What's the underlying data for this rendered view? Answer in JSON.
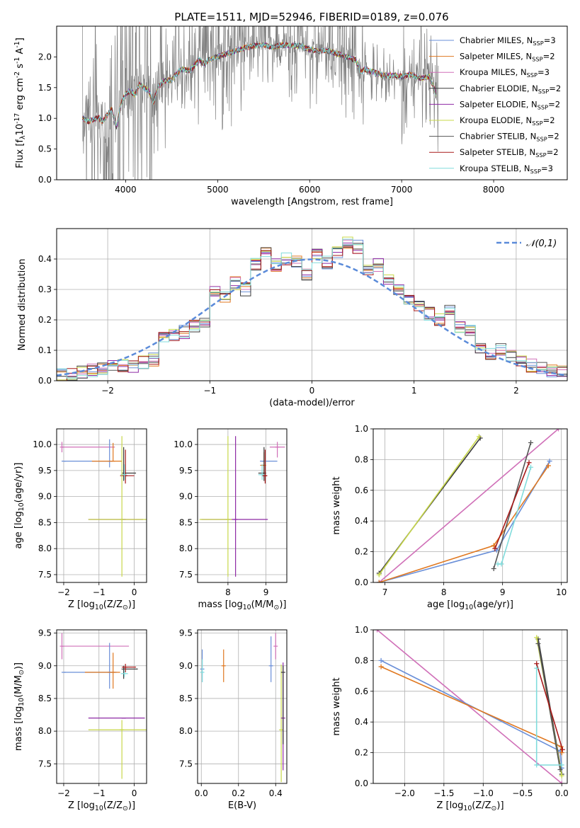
{
  "figure_title": "PLATE=1511, MJD=52946, FIBERID=0189, z=0.076",
  "series": [
    {
      "key": "chab_miles",
      "name": "Chabrier MILES, N$_{SSP}$=3",
      "color": "#6a8fd8"
    },
    {
      "key": "salp_miles",
      "name": "Salpeter MILES, N$_{SSP}$=2",
      "color": "#e07820"
    },
    {
      "key": "krou_miles",
      "name": "Kroupa MILES, N$_{SSP}$=3",
      "color": "#d070b8"
    },
    {
      "key": "chab_elodie",
      "name": "Chabrier ELODIE, N$_{SSP}$=2",
      "color": "#3a3a3a"
    },
    {
      "key": "salp_elodie",
      "name": "Salpeter ELODIE, N$_{SSP}$=2",
      "color": "#8e2aa5"
    },
    {
      "key": "krou_elodie",
      "name": "Kroupa ELODIE, N$_{SSP}$=2",
      "color": "#c8d84a"
    },
    {
      "key": "chab_stelib",
      "name": "Chabrier STELIB, N$_{SSP}$=2",
      "color": "#555555"
    },
    {
      "key": "salp_stelib",
      "name": "Salpeter STELIB, N$_{SSP}$=2",
      "color": "#a81a1a"
    },
    {
      "key": "krou_stelib",
      "name": "Kroupa STELIB, N$_{SSP}$=3",
      "color": "#80dcdc"
    }
  ],
  "chart_data": [
    {
      "id": "spectrum",
      "type": "line",
      "xlabel": "wavelength [Angstrom, rest frame]",
      "ylabel": "Flux [f$_\\lambda$10$^{-17}$ erg cm$^{-2}$ s$^{-1}$ A$^{-1}$]",
      "xlim": [
        3250,
        8800
      ],
      "ylim": [
        0,
        2.5
      ],
      "xticks": [
        4000,
        5000,
        6000,
        7000,
        8000
      ],
      "yticks": [
        0.0,
        0.5,
        1.0,
        1.5,
        2.0
      ],
      "observed_data_color": "#808080",
      "continuum_model": {
        "x": [
          3530,
          3600,
          3650,
          3700,
          3750,
          3800,
          3850,
          3900,
          3950,
          4000,
          4050,
          4100,
          4150,
          4200,
          4250,
          4300,
          4350,
          4400,
          4500,
          4600,
          4700,
          4800,
          4850,
          4900,
          5000,
          5100,
          5200,
          5300,
          5400,
          5500,
          5600,
          5700,
          5800,
          5900,
          6000,
          6100,
          6200,
          6300,
          6400,
          6500,
          6560,
          6600,
          6700,
          6800,
          6900,
          7000,
          7100,
          7200,
          7300,
          7400
        ],
        "y": [
          1.0,
          0.95,
          0.98,
          1.02,
          0.95,
          1.05,
          1.15,
          0.85,
          1.25,
          1.4,
          1.45,
          1.38,
          1.55,
          1.5,
          1.45,
          1.25,
          1.5,
          1.6,
          1.62,
          1.8,
          1.78,
          1.95,
          1.88,
          1.95,
          2.0,
          2.05,
          2.1,
          2.15,
          2.18,
          2.2,
          2.15,
          2.2,
          2.18,
          2.18,
          2.12,
          2.1,
          2.1,
          2.05,
          2.0,
          1.95,
          1.75,
          1.8,
          1.75,
          1.7,
          1.7,
          1.68,
          1.72,
          1.65,
          1.68,
          1.3
        ]
      },
      "legend_position": "right"
    },
    {
      "id": "residuals",
      "type": "histogram",
      "xlabel": "(data-model)/error",
      "ylabel": "Normed distribution",
      "xlim": [
        -2.5,
        2.5
      ],
      "ylim": [
        0,
        0.5
      ],
      "xticks": [
        -2,
        -1,
        0,
        1,
        2
      ],
      "yticks": [
        0.0,
        0.1,
        0.2,
        0.3,
        0.4
      ],
      "grid": true,
      "bin_edges": [
        -2.5,
        -2.4,
        -2.3,
        -2.2,
        -2.1,
        -2.0,
        -1.9,
        -1.8,
        -1.7,
        -1.6,
        -1.5,
        -1.4,
        -1.3,
        -1.2,
        -1.1,
        -1.0,
        -0.9,
        -0.8,
        -0.7,
        -0.6,
        -0.5,
        -0.4,
        -0.3,
        -0.2,
        -0.1,
        0.0,
        0.1,
        0.2,
        0.3,
        0.4,
        0.5,
        0.6,
        0.7,
        0.8,
        0.9,
        1.0,
        1.1,
        1.2,
        1.3,
        1.4,
        1.5,
        1.6,
        1.7,
        1.8,
        1.9,
        2.0,
        2.1,
        2.2,
        2.3,
        2.4,
        2.5
      ],
      "base_density": [
        0.018,
        0.022,
        0.03,
        0.035,
        0.04,
        0.045,
        0.05,
        0.05,
        0.06,
        0.07,
        0.14,
        0.15,
        0.16,
        0.18,
        0.19,
        0.29,
        0.27,
        0.32,
        0.3,
        0.38,
        0.42,
        0.38,
        0.4,
        0.39,
        0.35,
        0.41,
        0.39,
        0.42,
        0.45,
        0.44,
        0.36,
        0.38,
        0.34,
        0.3,
        0.27,
        0.24,
        0.22,
        0.2,
        0.23,
        0.18,
        0.16,
        0.11,
        0.09,
        0.1,
        0.08,
        0.07,
        0.05,
        0.04,
        0.03,
        0.03
      ],
      "reference_curve": {
        "name": "$\\mathcal{N}(0,1)$",
        "color": "#5b8bd9",
        "style": "dashed"
      }
    },
    {
      "id": "age_vs_Z",
      "type": "errorbar",
      "xlabel": "Z [log$_{10}$($Z/Z_\\odot$)]",
      "ylabel": "age  [log$_{10}$($age/yr$)]",
      "xlim": [
        -2.2,
        0.35
      ],
      "ylim": [
        7.35,
        10.3
      ],
      "xticks": [
        -2,
        -1,
        0
      ],
      "yticks": [
        7.5,
        8.0,
        8.5,
        9.0,
        9.5,
        10.0
      ],
      "points": [
        {
          "s": "krou_miles",
          "x": -2.05,
          "y": 9.95,
          "xerr": [
            0.0,
            1.5
          ],
          "yerr": [
            0.1,
            0.1
          ]
        },
        {
          "s": "chab_miles",
          "x": -2.0,
          "y": 9.68,
          "xerr": [
            0.0,
            1.4
          ],
          "yerr": [
            0.0,
            0.0
          ]
        },
        {
          "s": "chab_miles",
          "x": -0.7,
          "y": 9.68,
          "xerr": [
            0.0,
            0.0
          ],
          "yerr": [
            0.12,
            0.42
          ]
        },
        {
          "s": "salp_miles",
          "x": -0.6,
          "y": 9.68,
          "xerr": [
            0.6,
            0.25
          ],
          "yerr": [
            0.0,
            0.35
          ]
        },
        {
          "s": "chab_elodie",
          "x": -0.3,
          "y": 9.45,
          "xerr": [
            0.0,
            0.35
          ],
          "yerr": [
            0.15,
            0.5
          ]
        },
        {
          "s": "salp_stelib",
          "x": -0.25,
          "y": 9.4,
          "xerr": [
            0.15,
            0.25
          ],
          "yerr": [
            0.15,
            0.5
          ]
        },
        {
          "s": "krou_stelib",
          "x": -0.28,
          "y": 9.42,
          "xerr": [
            0.1,
            0.0
          ],
          "yerr": [
            0.1,
            0.2
          ]
        },
        {
          "s": "salp_elodie",
          "x": -0.3,
          "y": 8.56,
          "xerr": [
            1.0,
            0.55
          ],
          "yerr": [
            0.0,
            0.0
          ]
        },
        {
          "s": "krou_elodie",
          "x": -0.35,
          "y": 8.56,
          "xerr": [
            0.95,
            0.7
          ],
          "yerr": [
            1.1,
            1.6
          ]
        }
      ]
    },
    {
      "id": "age_vs_mass",
      "type": "errorbar",
      "xlabel": "mass [log$_{10}$($M/M_\\odot$)]",
      "xlim": [
        7.2,
        9.55
      ],
      "ylim": [
        7.35,
        10.3
      ],
      "xticks": [
        8,
        9
      ],
      "yticks": [
        7.5,
        8.0,
        8.5,
        9.0,
        9.5,
        10.0
      ],
      "points": [
        {
          "s": "krou_miles",
          "x": 9.3,
          "y": 9.95,
          "xerr": [
            0.2,
            0.2
          ],
          "yerr": [
            0.2,
            0.1
          ]
        },
        {
          "s": "chab_miles",
          "x": 8.9,
          "y": 9.68,
          "xerr": [
            0.0,
            0.4
          ],
          "yerr": [
            0.0,
            0.0
          ]
        },
        {
          "s": "salp_miles",
          "x": 8.95,
          "y": 9.6,
          "xerr": [
            0.1,
            0.0
          ],
          "yerr": [
            0.2,
            0.25
          ]
        },
        {
          "s": "chab_elodie",
          "x": 8.95,
          "y": 9.45,
          "xerr": [
            0.15,
            0.05
          ],
          "yerr": [
            0.15,
            0.5
          ]
        },
        {
          "s": "salp_stelib",
          "x": 8.98,
          "y": 9.4,
          "xerr": [
            0.08,
            0.05
          ],
          "yerr": [
            0.15,
            0.5
          ]
        },
        {
          "s": "krou_stelib",
          "x": 8.9,
          "y": 9.42,
          "xerr": [
            0.1,
            0.0
          ],
          "yerr": [
            0.1,
            0.2
          ]
        },
        {
          "s": "salp_elodie",
          "x": 8.2,
          "y": 8.56,
          "xerr": [
            0.9,
            0.85
          ],
          "yerr": [
            1.1,
            1.6
          ]
        },
        {
          "s": "krou_elodie",
          "x": 8.0,
          "y": 8.56,
          "xerr": [
            0.75,
            0.1
          ],
          "yerr": [
            1.1,
            1.6
          ]
        }
      ]
    },
    {
      "id": "mass_weight_vs_age",
      "type": "line",
      "xlabel": "age  [log$_{10}$($age/yr$)]",
      "ylabel": "mass weight",
      "xlim": [
        6.8,
        10.1
      ],
      "ylim": [
        0,
        1.0
      ],
      "xticks": [
        7,
        8,
        9,
        10
      ],
      "yticks": [
        0.0,
        0.2,
        0.4,
        0.6,
        0.8,
        1.0
      ],
      "series_points": [
        {
          "s": "krou_miles",
          "x": [
            6.9,
            9.95
          ],
          "y": [
            0.0,
            1.0
          ]
        },
        {
          "s": "chab_miles",
          "x": [
            6.9,
            8.9,
            9.8
          ],
          "y": [
            0.0,
            0.21,
            0.79
          ]
        },
        {
          "s": "salp_miles",
          "x": [
            6.9,
            8.85,
            9.78
          ],
          "y": [
            0.0,
            0.24,
            0.76
          ]
        },
        {
          "s": "chab_elodie",
          "x": [
            6.9,
            8.62
          ],
          "y": [
            0.06,
            0.94
          ]
        },
        {
          "s": "krou_elodie",
          "x": [
            6.9,
            8.6
          ],
          "y": [
            0.05,
            0.95
          ]
        },
        {
          "s": "chab_stelib",
          "x": [
            8.85,
            9.48
          ],
          "y": [
            0.09,
            0.91
          ]
        },
        {
          "s": "salp_stelib",
          "x": [
            8.87,
            9.45
          ],
          "y": [
            0.22,
            0.78
          ]
        },
        {
          "s": "krou_stelib",
          "x": [
            8.92,
            8.98,
            9.48
          ],
          "y": [
            0.12,
            0.12,
            0.75
          ]
        }
      ]
    },
    {
      "id": "mass_vs_Z",
      "type": "errorbar",
      "xlabel": "Z [log$_{10}$($Z/Z_\\odot$)]",
      "ylabel": "mass [log$_{10}$($M/M_\\odot$)]",
      "xlim": [
        -2.2,
        0.35
      ],
      "ylim": [
        7.2,
        9.55
      ],
      "xticks": [
        -2,
        -1,
        0
      ],
      "yticks": [
        7.5,
        8.0,
        8.5,
        9.0,
        9.5
      ],
      "points": [
        {
          "s": "krou_miles",
          "x": -2.05,
          "y": 9.3,
          "xerr": [
            0.0,
            1.9
          ],
          "yerr": [
            0.2,
            0.2
          ]
        },
        {
          "s": "chab_miles",
          "x": -2.0,
          "y": 8.9,
          "xerr": [
            0.0,
            1.5
          ],
          "yerr": [
            0.0,
            0.0
          ]
        },
        {
          "s": "chab_miles",
          "x": -0.7,
          "y": 8.9,
          "xerr": [
            0.0,
            0.0
          ],
          "yerr": [
            0.25,
            0.45
          ]
        },
        {
          "s": "salp_miles",
          "x": -0.6,
          "y": 8.9,
          "xerr": [
            0.8,
            0.2
          ],
          "yerr": [
            0.25,
            0.3
          ]
        },
        {
          "s": "chab_elodie",
          "x": -0.3,
          "y": 8.95,
          "xerr": [
            0.0,
            0.4
          ],
          "yerr": [
            0.15,
            0.05
          ]
        },
        {
          "s": "salp_stelib",
          "x": -0.25,
          "y": 8.98,
          "xerr": [
            0.1,
            0.3
          ],
          "yerr": [
            0.08,
            0.05
          ]
        },
        {
          "s": "krou_stelib",
          "x": -0.28,
          "y": 8.88,
          "xerr": [
            0.1,
            0.1
          ],
          "yerr": [
            0.05,
            0.05
          ]
        },
        {
          "s": "salp_elodie",
          "x": -0.3,
          "y": 8.2,
          "xerr": [
            1.0,
            0.6
          ],
          "yerr": [
            0.0,
            0.0
          ]
        },
        {
          "s": "krou_elodie",
          "x": -0.35,
          "y": 8.02,
          "xerr": [
            0.95,
            0.7
          ],
          "yerr": [
            0.75,
            0.15
          ]
        }
      ]
    },
    {
      "id": "mass_vs_ebv",
      "type": "errorbar",
      "xlabel": "E(B-V)",
      "xlim": [
        -0.02,
        0.46
      ],
      "ylim": [
        7.2,
        9.55
      ],
      "xticks": [
        0.0,
        0.2,
        0.4
      ],
      "yticks": [
        7.5,
        8.0,
        8.5,
        9.0,
        9.5
      ],
      "points": [
        {
          "s": "krou_miles",
          "x": 0.4,
          "y": 9.3,
          "xerr": [
            0.0,
            0.0
          ],
          "yerr": [
            0.2,
            0.2
          ]
        },
        {
          "s": "chab_miles",
          "x": 0.005,
          "y": 8.95,
          "xerr": [
            0.0,
            0.0
          ],
          "yerr": [
            0.2,
            0.3
          ]
        },
        {
          "s": "salp_miles",
          "x": 0.12,
          "y": 9.0,
          "xerr": [
            0.0,
            0.0
          ],
          "yerr": [
            0.25,
            0.25
          ]
        },
        {
          "s": "chab_miles",
          "x": 0.375,
          "y": 9.0,
          "xerr": [
            0.0,
            0.0
          ],
          "yerr": [
            0.25,
            0.45
          ]
        },
        {
          "s": "krou_stelib",
          "x": 0.005,
          "y": 8.9,
          "xerr": [
            0.0,
            0.0
          ],
          "yerr": [
            0.15,
            0.2
          ]
        },
        {
          "s": "krou_elodie",
          "x": 0.43,
          "y": 8.02,
          "xerr": [
            0.0,
            0.0
          ],
          "yerr": [
            0.8,
            1.0
          ]
        },
        {
          "s": "salp_elodie",
          "x": 0.44,
          "y": 8.2,
          "xerr": [
            0.0,
            0.0
          ],
          "yerr": [
            0.8,
            0.85
          ]
        },
        {
          "s": "chab_elodie",
          "x": 0.44,
          "y": 8.9,
          "xerr": [
            0.0,
            0.0
          ],
          "yerr": [
            1.1,
            0.1
          ]
        }
      ]
    },
    {
      "id": "mass_weight_vs_Z",
      "type": "line",
      "xlabel": "Z [log$_{10}$($Z/Z_\\odot$)]",
      "ylabel": "mass weight",
      "xlim": [
        -2.4,
        0.07
      ],
      "ylim": [
        0,
        1.0
      ],
      "xticks": [
        -2.0,
        -1.5,
        -1.0,
        -0.5,
        0.0
      ],
      "yticks": [
        0.0,
        0.2,
        0.4,
        0.6,
        0.8,
        1.0
      ],
      "series_points": [
        {
          "s": "krou_miles",
          "x": [
            -2.35,
            0.0
          ],
          "y": [
            1.0,
            0.0
          ]
        },
        {
          "s": "chab_miles",
          "x": [
            -2.3,
            -0.02,
            0.0
          ],
          "y": [
            0.8,
            0.21,
            0.1
          ]
        },
        {
          "s": "salp_miles",
          "x": [
            -2.3,
            -0.01,
            0.0
          ],
          "y": [
            0.76,
            0.24,
            0.2
          ]
        },
        {
          "s": "chab_elodie",
          "x": [
            -0.3,
            0.0
          ],
          "y": [
            0.94,
            0.06
          ]
        },
        {
          "s": "krou_elodie",
          "x": [
            -0.32,
            0.0
          ],
          "y": [
            0.95,
            0.05
          ]
        },
        {
          "s": "chab_stelib",
          "x": [
            -0.3,
            -0.02
          ],
          "y": [
            0.91,
            0.09
          ]
        },
        {
          "s": "salp_stelib",
          "x": [
            -0.32,
            0.01
          ],
          "y": [
            0.78,
            0.22
          ]
        },
        {
          "s": "krou_stelib",
          "x": [
            -0.32,
            -0.32,
            0.0
          ],
          "y": [
            0.75,
            0.12,
            0.12
          ]
        }
      ]
    }
  ]
}
